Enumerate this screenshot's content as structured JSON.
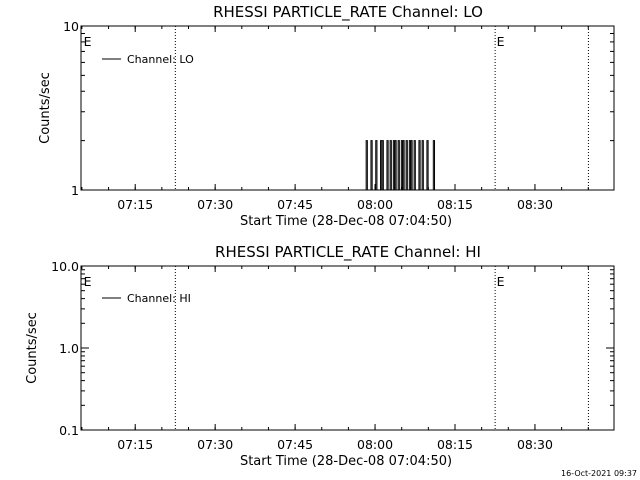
{
  "chart_data": [
    {
      "type": "line",
      "title": "RHESSI PARTICLE_RATE Channel: LO",
      "xlabel": "Start Time (28-Dec-08 07:04:50)",
      "ylabel": "Counts/sec",
      "yscale": "log",
      "ylim": [
        1,
        10
      ],
      "y_ticks": [
        1,
        10
      ],
      "y_tick_labels": [
        "1",
        "10"
      ],
      "x_tick_labels": [
        "07:15",
        "07:30",
        "07:45",
        "08:00",
        "08:15",
        "08:30"
      ],
      "x_tick_values_min": [
        10.17,
        25.17,
        40.17,
        55.17,
        70.17,
        85.17
      ],
      "xlim_min": [
        0,
        100
      ],
      "grid": false,
      "legend_position": "top-left",
      "vlines_min": [
        17.7,
        77.7,
        95.2
      ],
      "markers": [
        {
          "label": "E",
          "x_min": 0.3
        },
        {
          "label": "E",
          "x_min": 77.8
        }
      ],
      "series": [
        {
          "name": "Channel: LO",
          "x_min": [
            53.2,
            53.5,
            53.8,
            54.1,
            54.4,
            54.7,
            55.0,
            55.3,
            55.6,
            55.9,
            56.2,
            56.5,
            56.8,
            57.1,
            57.4,
            57.7,
            58.0,
            58.3,
            58.6,
            58.9,
            59.2,
            59.5,
            59.8,
            60.1,
            60.4,
            60.7,
            61.0,
            61.3,
            61.6,
            61.9,
            62.2,
            62.5,
            62.8,
            63.1,
            63.4,
            63.7,
            64.0,
            64.3,
            64.6,
            64.9,
            65.2,
            65.5,
            65.8,
            66.1,
            66.4,
            66.7,
            67.0,
            67.3
          ],
          "values": [
            1,
            2,
            1,
            1,
            2,
            1,
            1,
            2,
            1,
            1,
            2,
            2,
            1,
            1,
            2,
            1,
            2,
            1,
            2,
            2,
            1,
            2,
            1,
            2,
            2,
            1,
            2,
            1,
            2,
            2,
            1,
            2,
            1,
            1,
            2,
            1,
            2,
            1,
            1,
            2,
            1,
            1,
            1,
            2,
            1,
            1,
            1,
            1
          ]
        }
      ]
    },
    {
      "type": "line",
      "title": "RHESSI PARTICLE_RATE Channel: HI",
      "xlabel": "Start Time (28-Dec-08 07:04:50)",
      "ylabel": "Counts/sec",
      "yscale": "log",
      "ylim": [
        0.1,
        10
      ],
      "y_ticks": [
        0.1,
        1,
        10
      ],
      "y_tick_labels": [
        "0.1",
        "1.0",
        "10.0"
      ],
      "x_tick_labels": [
        "07:15",
        "07:30",
        "07:45",
        "08:00",
        "08:15",
        "08:30"
      ],
      "x_tick_values_min": [
        10.17,
        25.17,
        40.17,
        55.17,
        70.17,
        85.17
      ],
      "xlim_min": [
        0,
        100
      ],
      "grid": false,
      "legend_position": "top-left",
      "vlines_min": [
        17.7,
        77.7,
        95.2
      ],
      "markers": [
        {
          "label": "E",
          "x_min": 0.3
        },
        {
          "label": "E",
          "x_min": 77.8
        }
      ],
      "series": [
        {
          "name": "Channel: HI",
          "x_min": [],
          "values": []
        }
      ]
    }
  ],
  "timestamp": "16-Oct-2021 09:37"
}
